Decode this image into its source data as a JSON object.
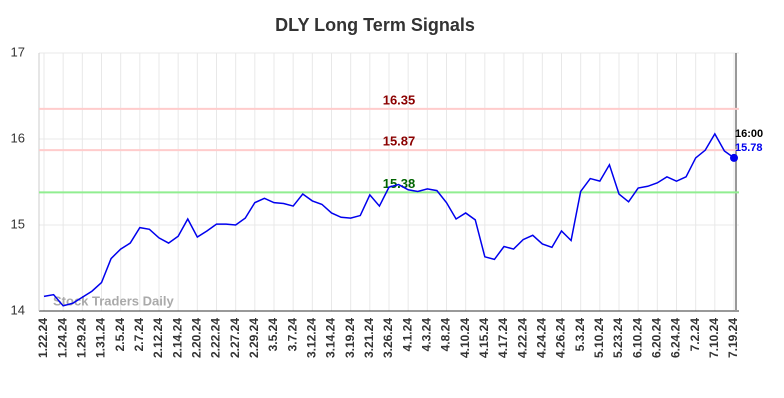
{
  "chart_data": {
    "type": "line",
    "title": "DLY Long Term Signals",
    "watermark": "Stock Traders Daily",
    "categories": [
      "1.22.24",
      null,
      "1.24.24",
      null,
      "1.29.24",
      null,
      "1.31.24",
      null,
      "2.5.24",
      null,
      "2.7.24",
      null,
      "2.12.24",
      null,
      "2.14.24",
      null,
      "2.20.24",
      null,
      "2.22.24",
      null,
      "2.27.24",
      null,
      "2.29.24",
      null,
      "3.5.24",
      null,
      "3.7.24",
      null,
      "3.12.24",
      null,
      "3.14.24",
      null,
      "3.19.24",
      null,
      "3.21.24",
      null,
      "3.26.24",
      null,
      "4.1.24",
      null,
      "4.3.24",
      null,
      "4.8.24",
      null,
      "4.10.24",
      null,
      "4.15.24",
      null,
      "4.17.24",
      null,
      "4.22.24",
      null,
      "4.24.24",
      null,
      "4.26.24",
      null,
      "5.3.24",
      null,
      "5.10.24",
      null,
      "5.23.24",
      null,
      "6.10.24",
      null,
      "6.20.24",
      null,
      "6.24.24",
      null,
      "7.2.24",
      null,
      "7.10.24",
      null,
      "7.19.24"
    ],
    "series": [
      {
        "name": "DLY",
        "color": "#0000ee",
        "values": [
          14.17,
          14.19,
          14.06,
          14.09,
          14.16,
          14.23,
          14.33,
          14.61,
          14.72,
          14.79,
          14.97,
          14.95,
          14.85,
          14.79,
          14.87,
          15.07,
          14.86,
          14.93,
          15.01,
          15.01,
          15.0,
          15.08,
          15.26,
          15.31,
          15.26,
          15.25,
          15.22,
          15.36,
          15.28,
          15.24,
          15.14,
          15.09,
          15.08,
          15.11,
          15.35,
          15.22,
          15.44,
          15.47,
          15.41,
          15.39,
          15.42,
          15.4,
          15.26,
          15.07,
          15.14,
          15.06,
          14.63,
          14.6,
          14.75,
          14.72,
          14.83,
          14.88,
          14.78,
          14.74,
          14.93,
          14.82,
          15.39,
          15.54,
          15.51,
          15.7,
          15.36,
          15.27,
          15.43,
          15.45,
          15.49,
          15.56,
          15.51,
          15.56,
          15.78,
          15.87,
          16.06,
          15.86,
          15.78
        ]
      }
    ],
    "last_time": "16:00",
    "signal_lines": [
      {
        "value": 16.35,
        "color": "#ffcccc",
        "label_color": "#8b0000"
      },
      {
        "value": 15.87,
        "color": "#ffcccc",
        "label_color": "#8b0000"
      },
      {
        "value": 15.38,
        "color": "#90ee90",
        "label_color": "#006400"
      }
    ],
    "ylim": [
      14,
      17
    ],
    "yticks": [
      14,
      15,
      16,
      17
    ],
    "grid": true
  }
}
